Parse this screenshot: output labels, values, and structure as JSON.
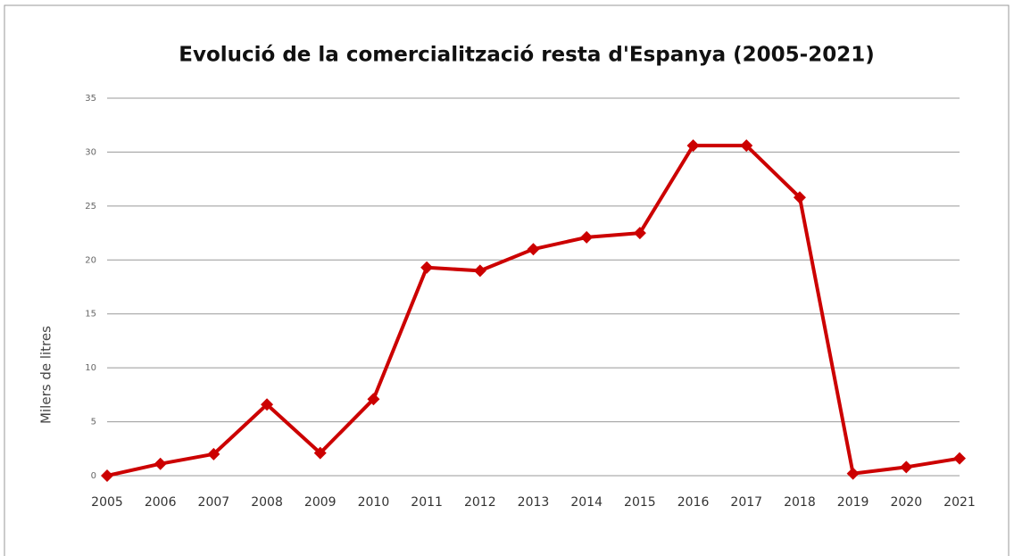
{
  "chart_data": {
    "type": "line",
    "title": "Evolució de la comercialització resta d'Espanya (2005-2021)",
    "y_label": "Milers de litres",
    "categories": [
      "2005",
      "2006",
      "2007",
      "2008",
      "2009",
      "2010",
      "2011",
      "2012",
      "2013",
      "2014",
      "2015",
      "2016",
      "2017",
      "2018",
      "2019",
      "2020",
      "2021"
    ],
    "series": [
      {
        "name": "Milers de litres",
        "color": "#cc0000",
        "values": [
          0,
          1.1,
          2.0,
          6.6,
          2.1,
          7.1,
          19.3,
          19.0,
          21.0,
          22.1,
          22.5,
          30.6,
          30.6,
          25.8,
          0.2,
          0.8,
          1.6
        ]
      }
    ],
    "ylim": [
      0,
      35
    ],
    "yticks": [
      0,
      5,
      10,
      15,
      20,
      25,
      30,
      35
    ],
    "grid": true
  }
}
